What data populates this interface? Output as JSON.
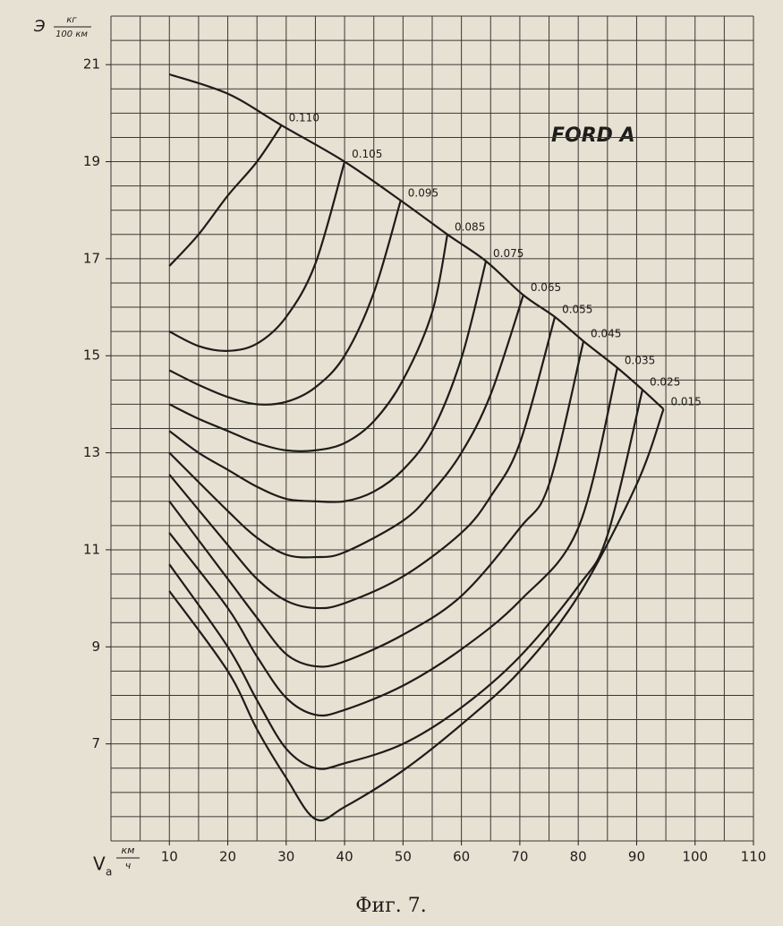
{
  "chart_data": {
    "type": "line",
    "annotation": "FORD A",
    "caption": "Фиг. 7.",
    "y_label": {
      "symbol": "Э",
      "unit_top": "кг",
      "unit_bottom": "100 км"
    },
    "x_label": {
      "symbol": "V",
      "subscript": "a",
      "unit_top": "км",
      "unit_bottom": "ч"
    },
    "xlim": [
      0,
      110
    ],
    "ylim": [
      5,
      22
    ],
    "xticks": [
      10,
      20,
      30,
      40,
      50,
      60,
      70,
      80,
      90,
      100,
      110
    ],
    "yticks": [
      7,
      9,
      11,
      13,
      15,
      17,
      19,
      21
    ],
    "xgrid": [
      0,
      5,
      10,
      15,
      20,
      25,
      30,
      35,
      40,
      45,
      50,
      55,
      60,
      65,
      70,
      75,
      80,
      85,
      90,
      95,
      100,
      105,
      110
    ],
    "ygrid": [
      5,
      5.5,
      6,
      6.5,
      7,
      7.5,
      8,
      8.5,
      9,
      9.5,
      10,
      10.5,
      11,
      11.5,
      12,
      12.5,
      13,
      13.5,
      14,
      14.5,
      15,
      15.5,
      16,
      16.5,
      17,
      17.5,
      18,
      18.5,
      19,
      19.5,
      20,
      20.5,
      21,
      21.5,
      22
    ],
    "grid": true,
    "color": "#1e1c1a",
    "series": [
      {
        "x": [
          10,
          20,
          29.2,
          40,
          49.6,
          57.6,
          64.2,
          70.6,
          76,
          80.9,
          86.7,
          91,
          94.6
        ],
        "values": [
          20.8,
          20.4,
          19.75,
          19.0,
          18.2,
          17.5,
          16.95,
          16.25,
          15.8,
          15.3,
          14.75,
          14.3,
          13.9
        ]
      },
      {
        "name": "0.110",
        "x": [
          10,
          15,
          20,
          25,
          29.2
        ],
        "values": [
          16.85,
          17.5,
          18.3,
          19.0,
          19.75
        ]
      },
      {
        "name": "0.105",
        "x": [
          10,
          15,
          20,
          25,
          30,
          35,
          40
        ],
        "values": [
          15.5,
          15.2,
          15.1,
          15.25,
          15.8,
          16.9,
          19.0
        ]
      },
      {
        "name": "0.095",
        "x": [
          10,
          15,
          20,
          25,
          30,
          35,
          40,
          45,
          49.6
        ],
        "values": [
          14.7,
          14.4,
          14.15,
          14.0,
          14.05,
          14.35,
          15.0,
          16.3,
          18.2
        ]
      },
      {
        "name": "0.085",
        "x": [
          10,
          15,
          20,
          25,
          30,
          35,
          40,
          45,
          50,
          55,
          57.6
        ],
        "values": [
          14.0,
          13.7,
          13.45,
          13.2,
          13.05,
          13.05,
          13.2,
          13.65,
          14.5,
          15.9,
          17.5
        ]
      },
      {
        "name": "0.075",
        "x": [
          10,
          15,
          20,
          25,
          30,
          35,
          40,
          45,
          50,
          55,
          60,
          64.2
        ],
        "values": [
          13.45,
          13.0,
          12.65,
          12.3,
          12.05,
          12.0,
          12.0,
          12.2,
          12.65,
          13.45,
          14.95,
          16.95
        ]
      },
      {
        "name": "0.065",
        "x": [
          10,
          20,
          25,
          30,
          35,
          40,
          50,
          55,
          60,
          65,
          70.6
        ],
        "values": [
          13.0,
          11.8,
          11.25,
          10.9,
          10.85,
          10.95,
          11.6,
          12.2,
          13.0,
          14.2,
          16.25
        ]
      },
      {
        "name": "0.055",
        "x": [
          10,
          20,
          25,
          30,
          35,
          40,
          50,
          60,
          65,
          70,
          76
        ],
        "values": [
          12.55,
          11.1,
          10.4,
          9.95,
          9.8,
          9.9,
          10.45,
          11.35,
          12.1,
          13.2,
          15.8
        ]
      },
      {
        "name": "0.045",
        "x": [
          10,
          20,
          25,
          30,
          35,
          40,
          50,
          60,
          70,
          75,
          80.9
        ],
        "values": [
          12.0,
          10.4,
          9.6,
          8.85,
          8.6,
          8.7,
          9.25,
          10.05,
          11.45,
          12.35,
          15.3
        ]
      },
      {
        "name": "0.035",
        "x": [
          10,
          20,
          25,
          30,
          35,
          40,
          50,
          60,
          70,
          80,
          86.7
        ],
        "values": [
          11.35,
          9.8,
          8.8,
          7.95,
          7.6,
          7.7,
          8.2,
          8.95,
          9.95,
          11.45,
          14.75
        ]
      },
      {
        "name": "0.025",
        "x": [
          10,
          20,
          25,
          30,
          35,
          40,
          50,
          60,
          70,
          80,
          85,
          91
        ],
        "values": [
          10.7,
          9.0,
          7.9,
          6.9,
          6.5,
          6.6,
          7.0,
          7.75,
          8.8,
          10.25,
          11.3,
          14.3
        ]
      },
      {
        "name": "0.015",
        "x": [
          10,
          20,
          25,
          30,
          35,
          40,
          50,
          60,
          70,
          80,
          90,
          94.6
        ],
        "values": [
          10.15,
          8.5,
          7.3,
          6.3,
          5.45,
          5.7,
          6.45,
          7.4,
          8.5,
          10.05,
          12.35,
          13.9
        ]
      }
    ]
  }
}
